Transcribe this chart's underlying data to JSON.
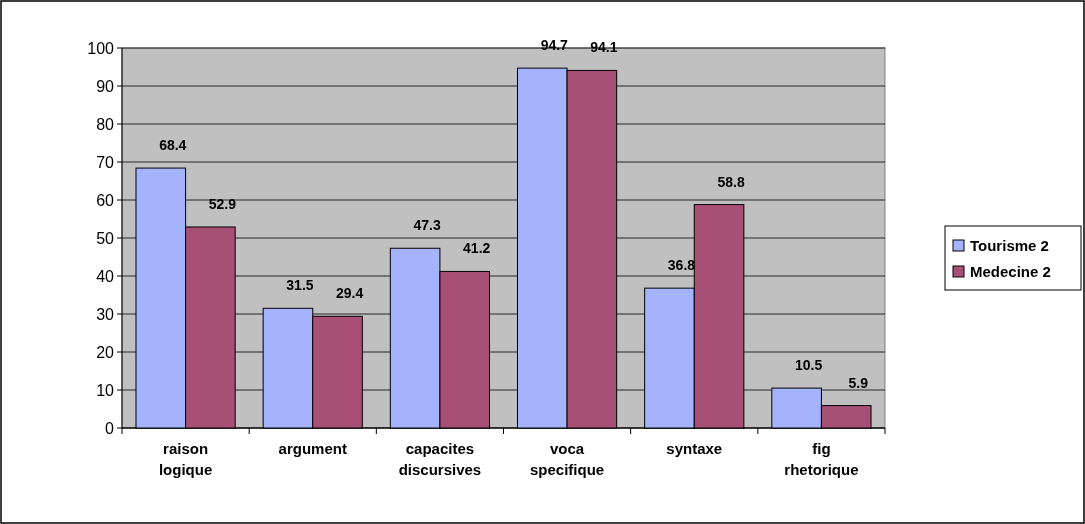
{
  "chart_data": {
    "type": "bar",
    "categories": [
      "raison logique",
      "argument",
      "capacites discursives",
      "voca specifique",
      "syntaxe",
      "fig rhetorique"
    ],
    "series": [
      {
        "name": "Tourisme 2",
        "color": "#a4b3fb",
        "values": [
          68.4,
          31.5,
          47.3,
          94.7,
          36.8,
          10.5
        ]
      },
      {
        "name": "Medecine 2",
        "color": "#a84f76",
        "values": [
          52.9,
          29.4,
          41.2,
          94.1,
          58.8,
          5.9
        ]
      }
    ],
    "ylim": [
      0,
      100
    ],
    "yticks": [
      0,
      10,
      20,
      30,
      40,
      50,
      60,
      70,
      80,
      90,
      100
    ],
    "grid": "y",
    "legend": "right",
    "data_labels": true
  }
}
